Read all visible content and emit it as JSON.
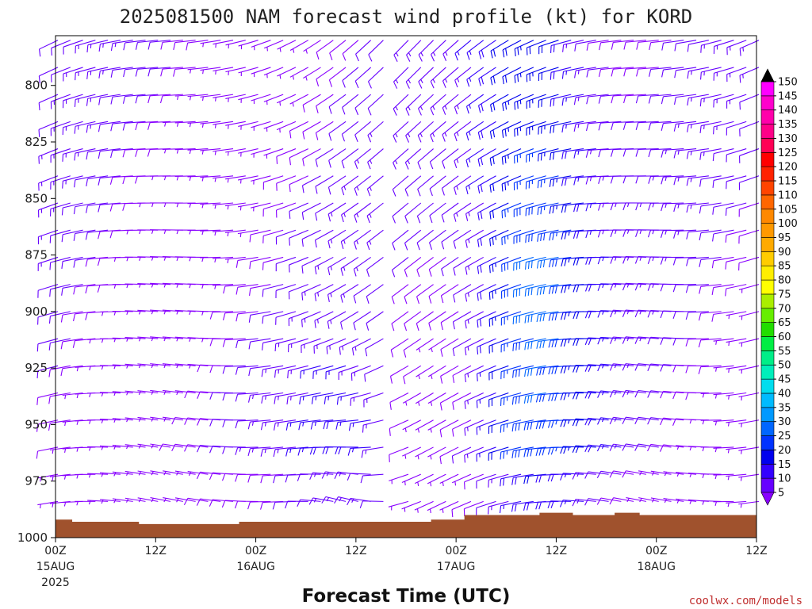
{
  "chart_data": {
    "type": "wind-barb-time-height",
    "title": "2025081500 NAM forecast wind profile (kt) for KORD",
    "xlabel": "Forecast Time (UTC)",
    "ylabel": "",
    "credit": "coolwx.com/models",
    "y_ticks": [
      800,
      825,
      850,
      875,
      900,
      925,
      950,
      975,
      1000
    ],
    "y_range_hpa": [
      778,
      1000
    ],
    "x_range_hours": [
      0,
      84
    ],
    "x_ticks": [
      {
        "hour": 0,
        "label": "00Z",
        "date": "15AUG",
        "year": "2025"
      },
      {
        "hour": 12,
        "label": "12Z",
        "date": "",
        "year": ""
      },
      {
        "hour": 24,
        "label": "00Z",
        "date": "16AUG",
        "year": ""
      },
      {
        "hour": 36,
        "label": "12Z",
        "date": "",
        "year": ""
      },
      {
        "hour": 48,
        "label": "00Z",
        "date": "17AUG",
        "year": ""
      },
      {
        "hour": 60,
        "label": "12Z",
        "date": "",
        "year": ""
      },
      {
        "hour": 72,
        "label": "00Z",
        "date": "18AUG",
        "year": ""
      },
      {
        "hour": 84,
        "label": "12Z",
        "date": "",
        "year": ""
      }
    ],
    "colorbar": {
      "units": "kt",
      "levels": [
        5,
        10,
        15,
        20,
        25,
        30,
        35,
        40,
        45,
        50,
        55,
        60,
        65,
        70,
        75,
        80,
        85,
        90,
        95,
        100,
        105,
        110,
        115,
        120,
        125,
        130,
        135,
        140,
        145,
        150
      ],
      "colors": [
        "#8800ff",
        "#6600ff",
        "#3300ff",
        "#0000ee",
        "#0033ff",
        "#0066ff",
        "#0099ff",
        "#00bbff",
        "#00ddee",
        "#00eebb",
        "#00ee88",
        "#00ee44",
        "#22dd00",
        "#66ee00",
        "#aaee00",
        "#ffff00",
        "#ffee00",
        "#ffcc00",
        "#ffaa00",
        "#ff9900",
        "#ff8800",
        "#ff6600",
        "#ff4400",
        "#ff2200",
        "#ff0000",
        "#ff0055",
        "#ff0088",
        "#ff00aa",
        "#ff00cc",
        "#ff00ff"
      ],
      "arrow_below_color": "#8800ff",
      "arrow_above_color": "#000000"
    },
    "surface_pressure_hpa": [
      {
        "hour": 0,
        "p": 992
      },
      {
        "hour": 2,
        "p": 993
      },
      {
        "hour": 8,
        "p": 993
      },
      {
        "hour": 10,
        "p": 994
      },
      {
        "hour": 21,
        "p": 994
      },
      {
        "hour": 22,
        "p": 993
      },
      {
        "hour": 30,
        "p": 993
      },
      {
        "hour": 39,
        "p": 993
      },
      {
        "hour": 45,
        "p": 992
      },
      {
        "hour": 49,
        "p": 990
      },
      {
        "hour": 58,
        "p": 989
      },
      {
        "hour": 62,
        "p": 990
      },
      {
        "hour": 67,
        "p": 989
      },
      {
        "hour": 70,
        "p": 990
      },
      {
        "hour": 84,
        "p": 991
      }
    ],
    "surface_color": "#a0522d"
  }
}
